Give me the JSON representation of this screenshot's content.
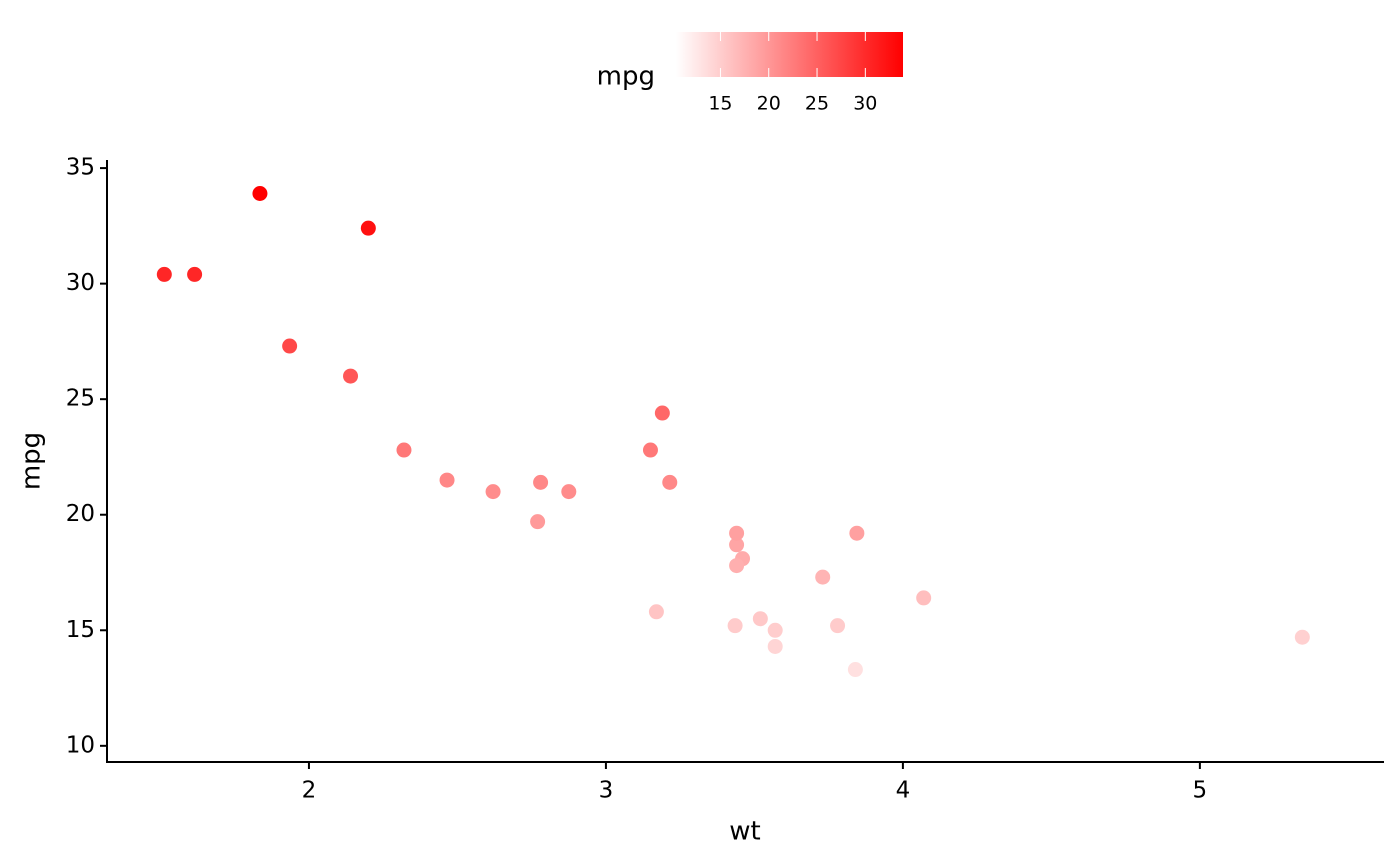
{
  "chart_data": {
    "type": "scatter",
    "x_label": "wt",
    "y_label": "mpg",
    "legend_title": "mpg",
    "x": [
      2.62,
      2.875,
      2.32,
      3.215,
      3.44,
      3.46,
      3.57,
      3.19,
      3.15,
      3.44,
      3.44,
      4.07,
      3.73,
      3.78,
      5.345,
      2.2,
      1.615,
      1.835,
      2.465,
      3.52,
      3.435,
      3.84,
      3.845,
      1.935,
      2.14,
      1.513,
      3.17,
      2.77,
      3.57,
      2.78
    ],
    "y": [
      21.0,
      21.0,
      22.8,
      21.4,
      18.7,
      18.1,
      14.3,
      24.4,
      22.8,
      19.2,
      17.8,
      16.4,
      17.3,
      15.2,
      14.7,
      32.4,
      30.4,
      33.9,
      21.5,
      15.5,
      15.2,
      13.3,
      19.2,
      27.3,
      26.0,
      30.4,
      15.8,
      19.7,
      15.0,
      21.4
    ],
    "xlim": [
      1.32,
      5.62
    ],
    "xticks": [
      2,
      3,
      4,
      5
    ],
    "ylim": [
      9.3,
      35.35
    ],
    "yticks": [
      10,
      15,
      20,
      25,
      30,
      35
    ],
    "color_low": "#ffffff",
    "color_high": "#ff0000",
    "color_limits": [
      10.4,
      33.9
    ],
    "color_ticks": [
      15,
      20,
      25,
      30
    ]
  }
}
